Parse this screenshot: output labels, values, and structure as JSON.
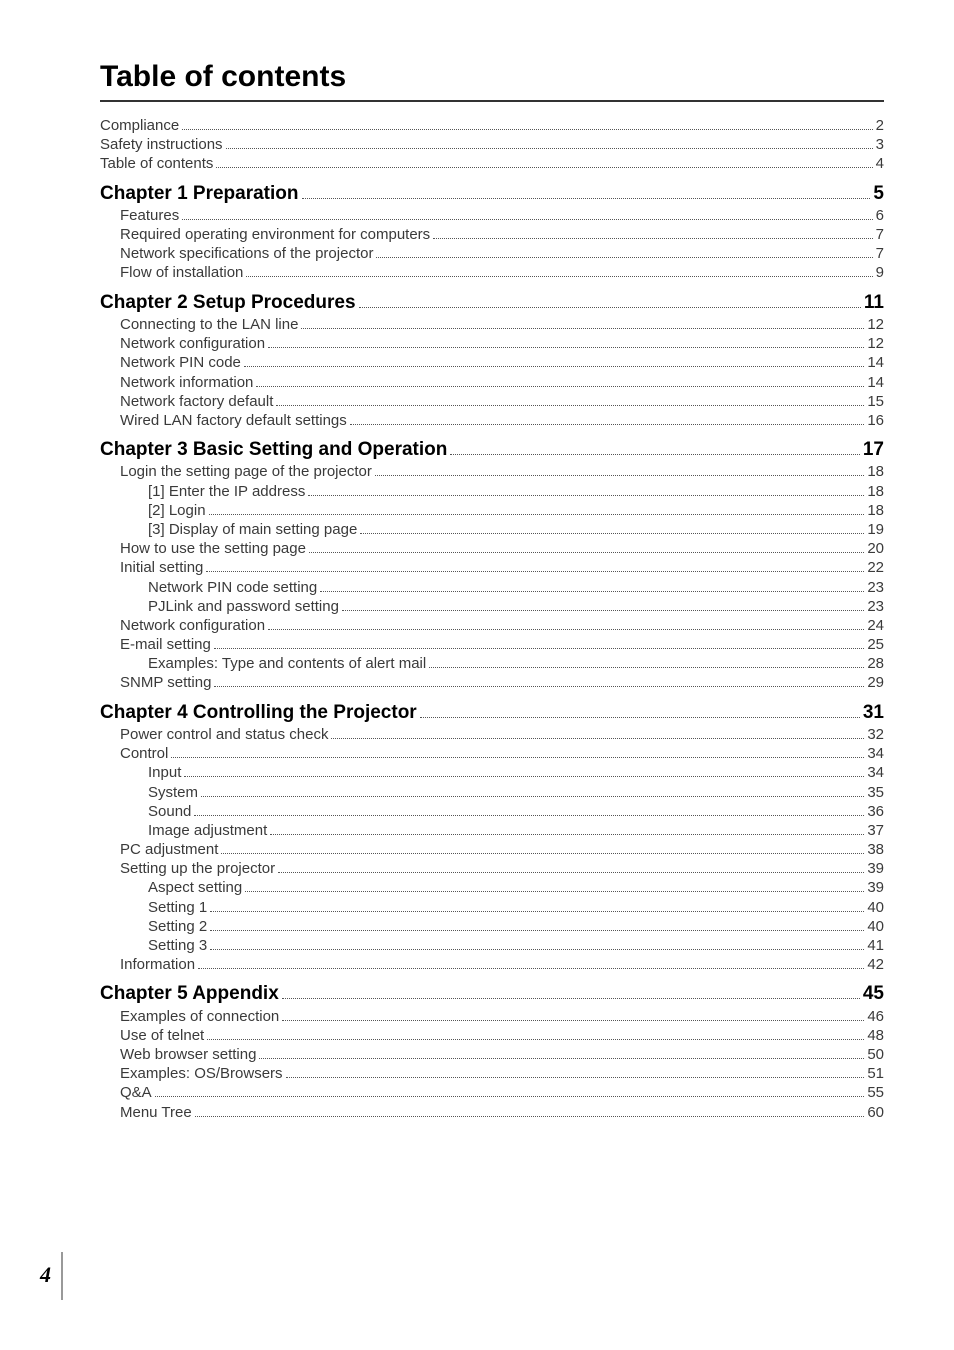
{
  "title": "Table of contents",
  "page_number": "4",
  "colors": {
    "text_primary": "#000000",
    "text_secondary": "#3a3a3a",
    "dots": "#555555",
    "rule": "#333333",
    "footer_bar": "#999999",
    "background": "#ffffff"
  },
  "typography": {
    "title_fontsize": 30,
    "chapter_fontsize": 19,
    "body_fontsize": 15,
    "page_number_fontsize": 22,
    "title_weight": 700,
    "chapter_weight": 600
  },
  "entries": [
    {
      "level": 0,
      "label": "Compliance",
      "page": "2"
    },
    {
      "level": 0,
      "label": "Safety instructions",
      "page": "3"
    },
    {
      "level": 0,
      "label": "Table of contents",
      "page": "4"
    },
    {
      "level": 1,
      "label": "Chapter 1 Preparation",
      "page": "5",
      "gap": true
    },
    {
      "level": 2,
      "label": "Features",
      "page": "6"
    },
    {
      "level": 2,
      "label": "Required operating environment for computers",
      "page": "7"
    },
    {
      "level": 2,
      "label": "Network specifications of the projector",
      "page": "7"
    },
    {
      "level": 2,
      "label": "Flow of installation",
      "page": "9"
    },
    {
      "level": 1,
      "label": "Chapter 2 Setup Procedures",
      "page": "11",
      "gap": true
    },
    {
      "level": 2,
      "label": "Connecting to the LAN line",
      "page": "12"
    },
    {
      "level": 2,
      "label": "Network configuration",
      "page": "12"
    },
    {
      "level": 2,
      "label": "Network PIN code",
      "page": "14"
    },
    {
      "level": 2,
      "label": "Network information",
      "page": "14"
    },
    {
      "level": 2,
      "label": "Network factory default",
      "page": "15"
    },
    {
      "level": 2,
      "label": "Wired LAN factory default settings",
      "page": "16"
    },
    {
      "level": 1,
      "label": "Chapter 3 Basic Setting and Operation",
      "page": "17",
      "gap": true
    },
    {
      "level": 2,
      "label": "Login the setting page of the projector",
      "page": "18"
    },
    {
      "level": 3,
      "label": "[1] Enter the IP address",
      "page": "18"
    },
    {
      "level": 3,
      "label": "[2] Login",
      "page": "18"
    },
    {
      "level": 3,
      "label": "[3] Display of main setting page",
      "page": "19"
    },
    {
      "level": 2,
      "label": "How to use the setting page",
      "page": "20"
    },
    {
      "level": 2,
      "label": "Initial setting",
      "page": "22"
    },
    {
      "level": 3,
      "label": "Network PIN code setting",
      "page": "23"
    },
    {
      "level": 3,
      "label": "PJLink and password setting",
      "page": "23"
    },
    {
      "level": 2,
      "label": "Network configuration",
      "page": "24"
    },
    {
      "level": 2,
      "label": "E-mail setting",
      "page": "25"
    },
    {
      "level": 3,
      "label": "Examples: Type and contents of alert mail",
      "page": "28"
    },
    {
      "level": 2,
      "label": "SNMP setting",
      "page": "29"
    },
    {
      "level": 1,
      "label": "Chapter 4 Controlling the Projector",
      "page": "31",
      "gap": true
    },
    {
      "level": 2,
      "label": "Power control and status check",
      "page": "32"
    },
    {
      "level": 2,
      "label": "Control",
      "page": "34"
    },
    {
      "level": 3,
      "label": "Input",
      "page": "34"
    },
    {
      "level": 3,
      "label": "System",
      "page": "35"
    },
    {
      "level": 3,
      "label": "Sound",
      "page": "36"
    },
    {
      "level": 3,
      "label": "Image  adjustment",
      "page": "37"
    },
    {
      "level": 2,
      "label": "PC adjustment",
      "page": "38"
    },
    {
      "level": 2,
      "label": "Setting up the projector",
      "page": "39"
    },
    {
      "level": 3,
      "label": "Aspect setting",
      "page": "39"
    },
    {
      "level": 3,
      "label": "Setting 1",
      "page": "40"
    },
    {
      "level": 3,
      "label": "Setting 2",
      "page": "40"
    },
    {
      "level": 3,
      "label": "Setting 3",
      "page": "41"
    },
    {
      "level": 2,
      "label": "Information",
      "page": "42"
    },
    {
      "level": 1,
      "label": "Chapter 5 Appendix",
      "page": "45",
      "gap": true
    },
    {
      "level": 2,
      "label": "Examples of connection",
      "page": "46"
    },
    {
      "level": 2,
      "label": "Use of telnet",
      "page": "48"
    },
    {
      "level": 2,
      "label": "Web browser setting",
      "page": "50"
    },
    {
      "level": 2,
      "label": "Examples: OS/Browsers",
      "page": "51"
    },
    {
      "level": 2,
      "label": "Q&A",
      "page": "55"
    },
    {
      "level": 2,
      "label": "Menu Tree",
      "page": "60"
    }
  ]
}
